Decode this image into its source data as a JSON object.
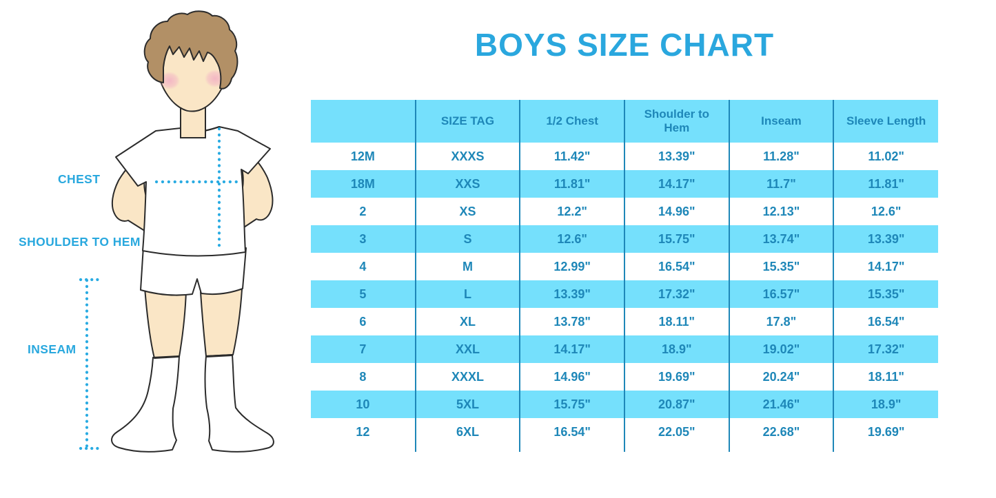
{
  "title": "BOYS SIZE CHART",
  "colors": {
    "title_blue": "#2AA7DE",
    "table_fill": "#75E0FC",
    "table_ink": "#1E87B8",
    "label_blue": "#29A8DE",
    "dot_blue": "#29ABE2",
    "skin": "#FAE6C6",
    "hair": "#B29066",
    "blush": "#F2AFC4",
    "outline": "#2B2B2B"
  },
  "figure": {
    "description": "boy-measurement-illustration",
    "labels": {
      "chest": "CHEST",
      "shoulder_to_hem": "SHOULDER TO HEM",
      "inseam": "INSEAM"
    }
  },
  "chart_data": {
    "type": "table",
    "title": "BOYS SIZE CHART",
    "columns": [
      "",
      "SIZE TAG",
      "1/2 Chest",
      "Shoulder to Hem",
      "Inseam",
      "Sleeve Length"
    ],
    "rows": [
      [
        "12M",
        "XXXS",
        "11.42\"",
        "13.39\"",
        "11.28\"",
        "11.02\""
      ],
      [
        "18M",
        "XXS",
        "11.81\"",
        "14.17\"",
        "11.7\"",
        "11.81\""
      ],
      [
        "2",
        "XS",
        "12.2\"",
        "14.96\"",
        "12.13\"",
        "12.6\""
      ],
      [
        "3",
        "S",
        "12.6\"",
        "15.75\"",
        "13.74\"",
        "13.39\""
      ],
      [
        "4",
        "M",
        "12.99\"",
        "16.54\"",
        "15.35\"",
        "14.17\""
      ],
      [
        "5",
        "L",
        "13.39\"",
        "17.32\"",
        "16.57\"",
        "15.35\""
      ],
      [
        "6",
        "XL",
        "13.78\"",
        "18.11\"",
        "17.8\"",
        "16.54\""
      ],
      [
        "7",
        "XXL",
        "14.17\"",
        "18.9\"",
        "19.02\"",
        "17.32\""
      ],
      [
        "8",
        "XXXL",
        "14.96\"",
        "19.69\"",
        "20.24\"",
        "18.11\""
      ],
      [
        "10",
        "5XL",
        "15.75\"",
        "20.87\"",
        "21.46\"",
        "18.9\""
      ],
      [
        "12",
        "6XL",
        "16.54\"",
        "22.05\"",
        "22.68\"",
        "19.69\""
      ]
    ],
    "units": "inches",
    "row_striping": "white / light-blue alternating, header light-blue"
  }
}
